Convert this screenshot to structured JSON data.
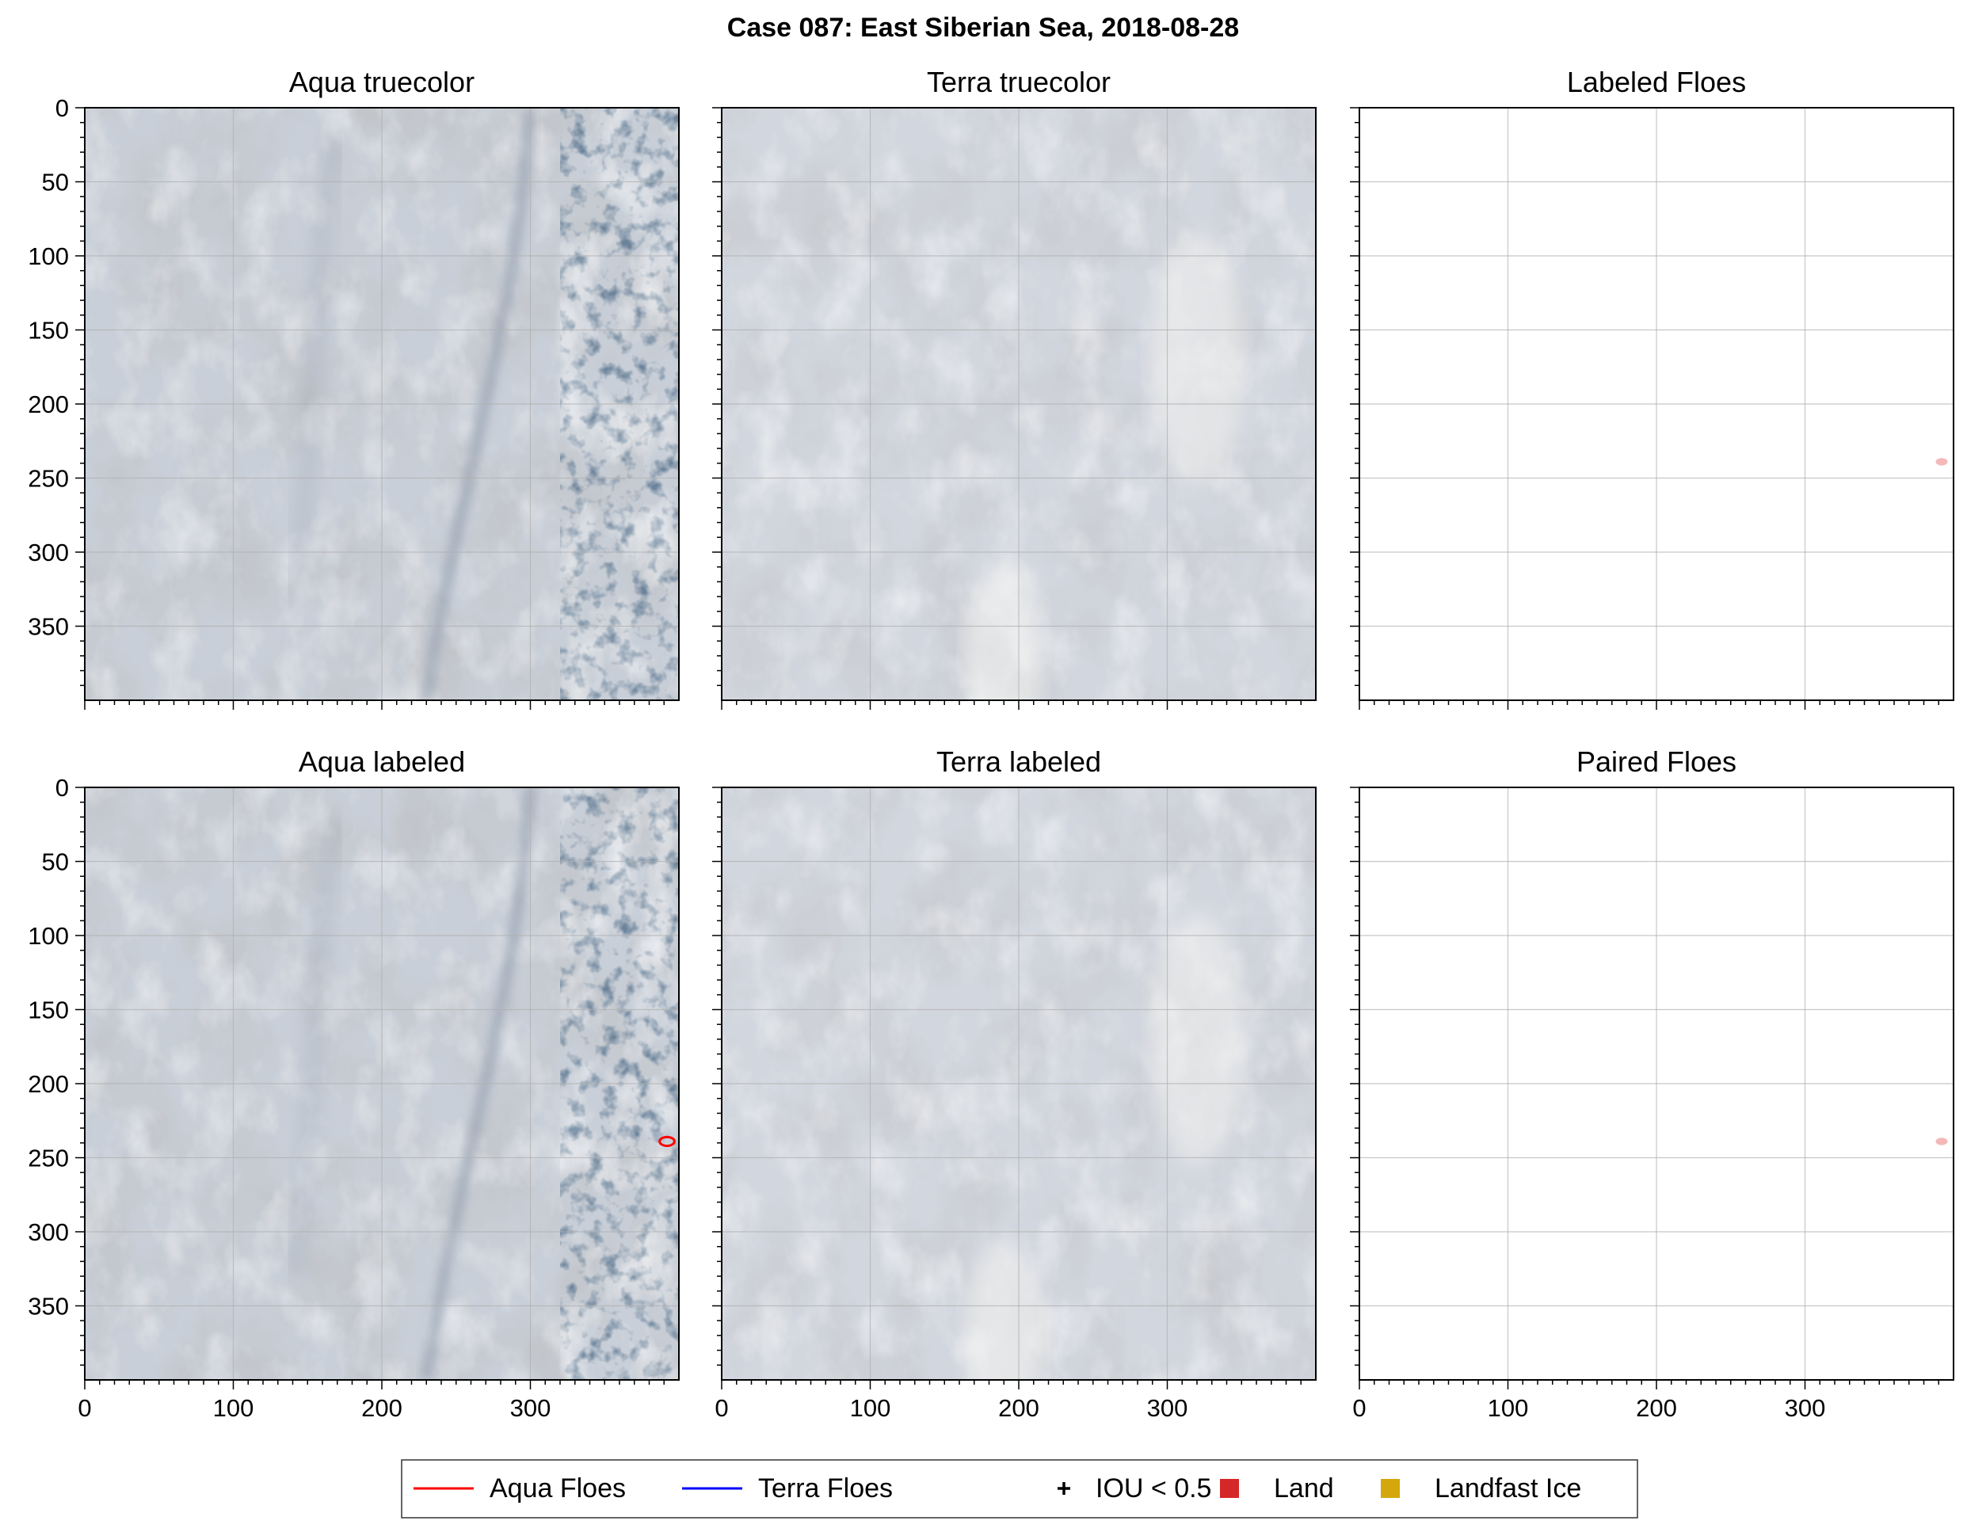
{
  "suptitle": "Case 087: East Siberian Sea, 2018-08-28",
  "colors": {
    "aqua_floes": "#ff0000",
    "terra_floes": "#0000ff",
    "iou_marker": "#000000",
    "land": "#d62728",
    "landfast_ice": "#d4a80c",
    "labeled_floe_fill": "#f4b8b8",
    "grid": "#b0b0b0"
  },
  "axes": {
    "xlim": [
      0,
      400
    ],
    "ylim": [
      400,
      0
    ],
    "ticks": [
      0,
      50,
      100,
      150,
      200,
      250,
      300,
      350
    ],
    "x_ticks": [
      0,
      100,
      200,
      300
    ],
    "x_labels": [
      "0",
      "100",
      "200",
      "300"
    ],
    "y_ticks": [
      0,
      50,
      100,
      150,
      200,
      250,
      300,
      350
    ],
    "y_labels": [
      "0",
      "50",
      "100",
      "150",
      "200",
      "250",
      "300",
      "350"
    ]
  },
  "panels": [
    {
      "id": "aqua_truecolor",
      "title": "Aqua truecolor",
      "kind": "image-aqua",
      "show_ylabels": true,
      "show_xlabels": false
    },
    {
      "id": "terra_truecolor",
      "title": "Terra truecolor",
      "kind": "image-terra",
      "show_ylabels": false,
      "show_xlabels": false
    },
    {
      "id": "labeled_floes",
      "title": "Labeled Floes",
      "kind": "blank",
      "show_ylabels": false,
      "show_xlabels": false
    },
    {
      "id": "aqua_labeled",
      "title": "Aqua labeled",
      "kind": "image-aqua",
      "show_ylabels": true,
      "show_xlabels": true
    },
    {
      "id": "terra_labeled",
      "title": "Terra labeled",
      "kind": "image-terra",
      "show_ylabels": false,
      "show_xlabels": true
    },
    {
      "id": "paired_floes",
      "title": "Paired Floes",
      "kind": "blank",
      "show_ylabels": false,
      "show_xlabels": true
    }
  ],
  "chart_data": {
    "type": "scatter",
    "title": "Case 087: East Siberian Sea, 2018-08-28",
    "xlim": [
      0,
      400
    ],
    "ylim": [
      400,
      0
    ],
    "grid": true,
    "legend_placement": "bottom-center",
    "legend": [
      {
        "label": "Aqua Floes",
        "marker": "line",
        "color": "#ff0000"
      },
      {
        "label": "Terra Floes",
        "marker": "line",
        "color": "#0000ff"
      },
      {
        "label": "IOU < 0.5",
        "marker": "plus",
        "color": "#000000"
      },
      {
        "label": "Land",
        "marker": "square",
        "color": "#d62728"
      },
      {
        "label": "Landfast Ice",
        "marker": "square",
        "color": "#d4a80c"
      }
    ],
    "floes": [
      {
        "panel": "Labeled Floes",
        "x": 392,
        "y": 239,
        "width": 8,
        "height": 5
      },
      {
        "panel": "Paired Floes",
        "x": 392,
        "y": 239,
        "width": 8,
        "height": 5
      },
      {
        "panel": "Aqua labeled",
        "series": "Aqua Floes",
        "x": 392,
        "y": 239,
        "width": 10,
        "height": 6
      }
    ]
  }
}
